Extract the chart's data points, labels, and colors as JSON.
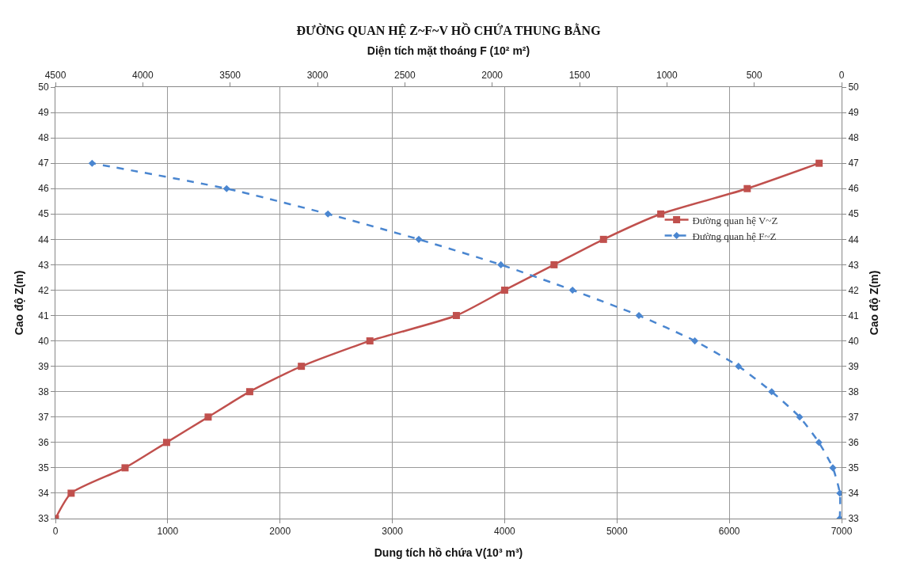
{
  "chart_data": {
    "type": "line",
    "title": "ĐƯỜNG QUAN HỆ Z~F~V HỒ CHỨA THUNG BẰNG",
    "xlabel": "Dung tích hồ chứa V(10³ m³)",
    "x2label": "Diện tích mặt thoáng F (10² m²)",
    "ylabel": "Cao độ Z(m)",
    "y2label": "Cao độ Z(m)",
    "xlim": [
      0,
      7000
    ],
    "xticks": [
      0,
      1000,
      2000,
      3000,
      4000,
      5000,
      6000,
      7000
    ],
    "x2lim": [
      4500,
      0
    ],
    "x2ticks": [
      4500,
      4000,
      3500,
      3000,
      2500,
      2000,
      1500,
      1000,
      500,
      0
    ],
    "ylim": [
      33,
      50
    ],
    "yticks": [
      33,
      34,
      35,
      36,
      37,
      38,
      39,
      40,
      41,
      42,
      43,
      44,
      45,
      46,
      47,
      48,
      49,
      50
    ],
    "y2lim": [
      33,
      50
    ],
    "y2ticks": [
      33,
      34,
      35,
      36,
      37,
      38,
      39,
      40,
      41,
      42,
      43,
      44,
      45,
      46,
      47,
      48,
      49,
      50
    ],
    "grid": true,
    "legend": "right",
    "series": [
      {
        "name": "Đường quan hệ V~Z",
        "color": "#c0504d",
        "marker": "square",
        "line_style": "solid",
        "x": [
          0,
          140,
          620,
          990,
          1360,
          1730,
          2190,
          2800,
          3570,
          4000,
          4440,
          4880,
          5390,
          6160,
          6800
        ],
        "values": [
          33,
          34,
          35,
          36,
          37,
          38,
          39,
          40,
          41,
          42,
          43,
          44,
          45,
          46,
          47
        ]
      },
      {
        "name": "Đường quan hệ F~Z",
        "color": "#4a86d0",
        "marker": "diamond",
        "line_style": "dashed",
        "axis": "x2",
        "x": [
          10,
          10,
          50,
          130,
          240,
          400,
          590,
          840,
          1160,
          1540,
          1950,
          2420,
          2940,
          3520,
          4290
        ],
        "values": [
          33,
          34,
          35,
          36,
          37,
          38,
          39,
          40,
          41,
          42,
          43,
          44,
          45,
          46,
          47
        ]
      }
    ]
  }
}
